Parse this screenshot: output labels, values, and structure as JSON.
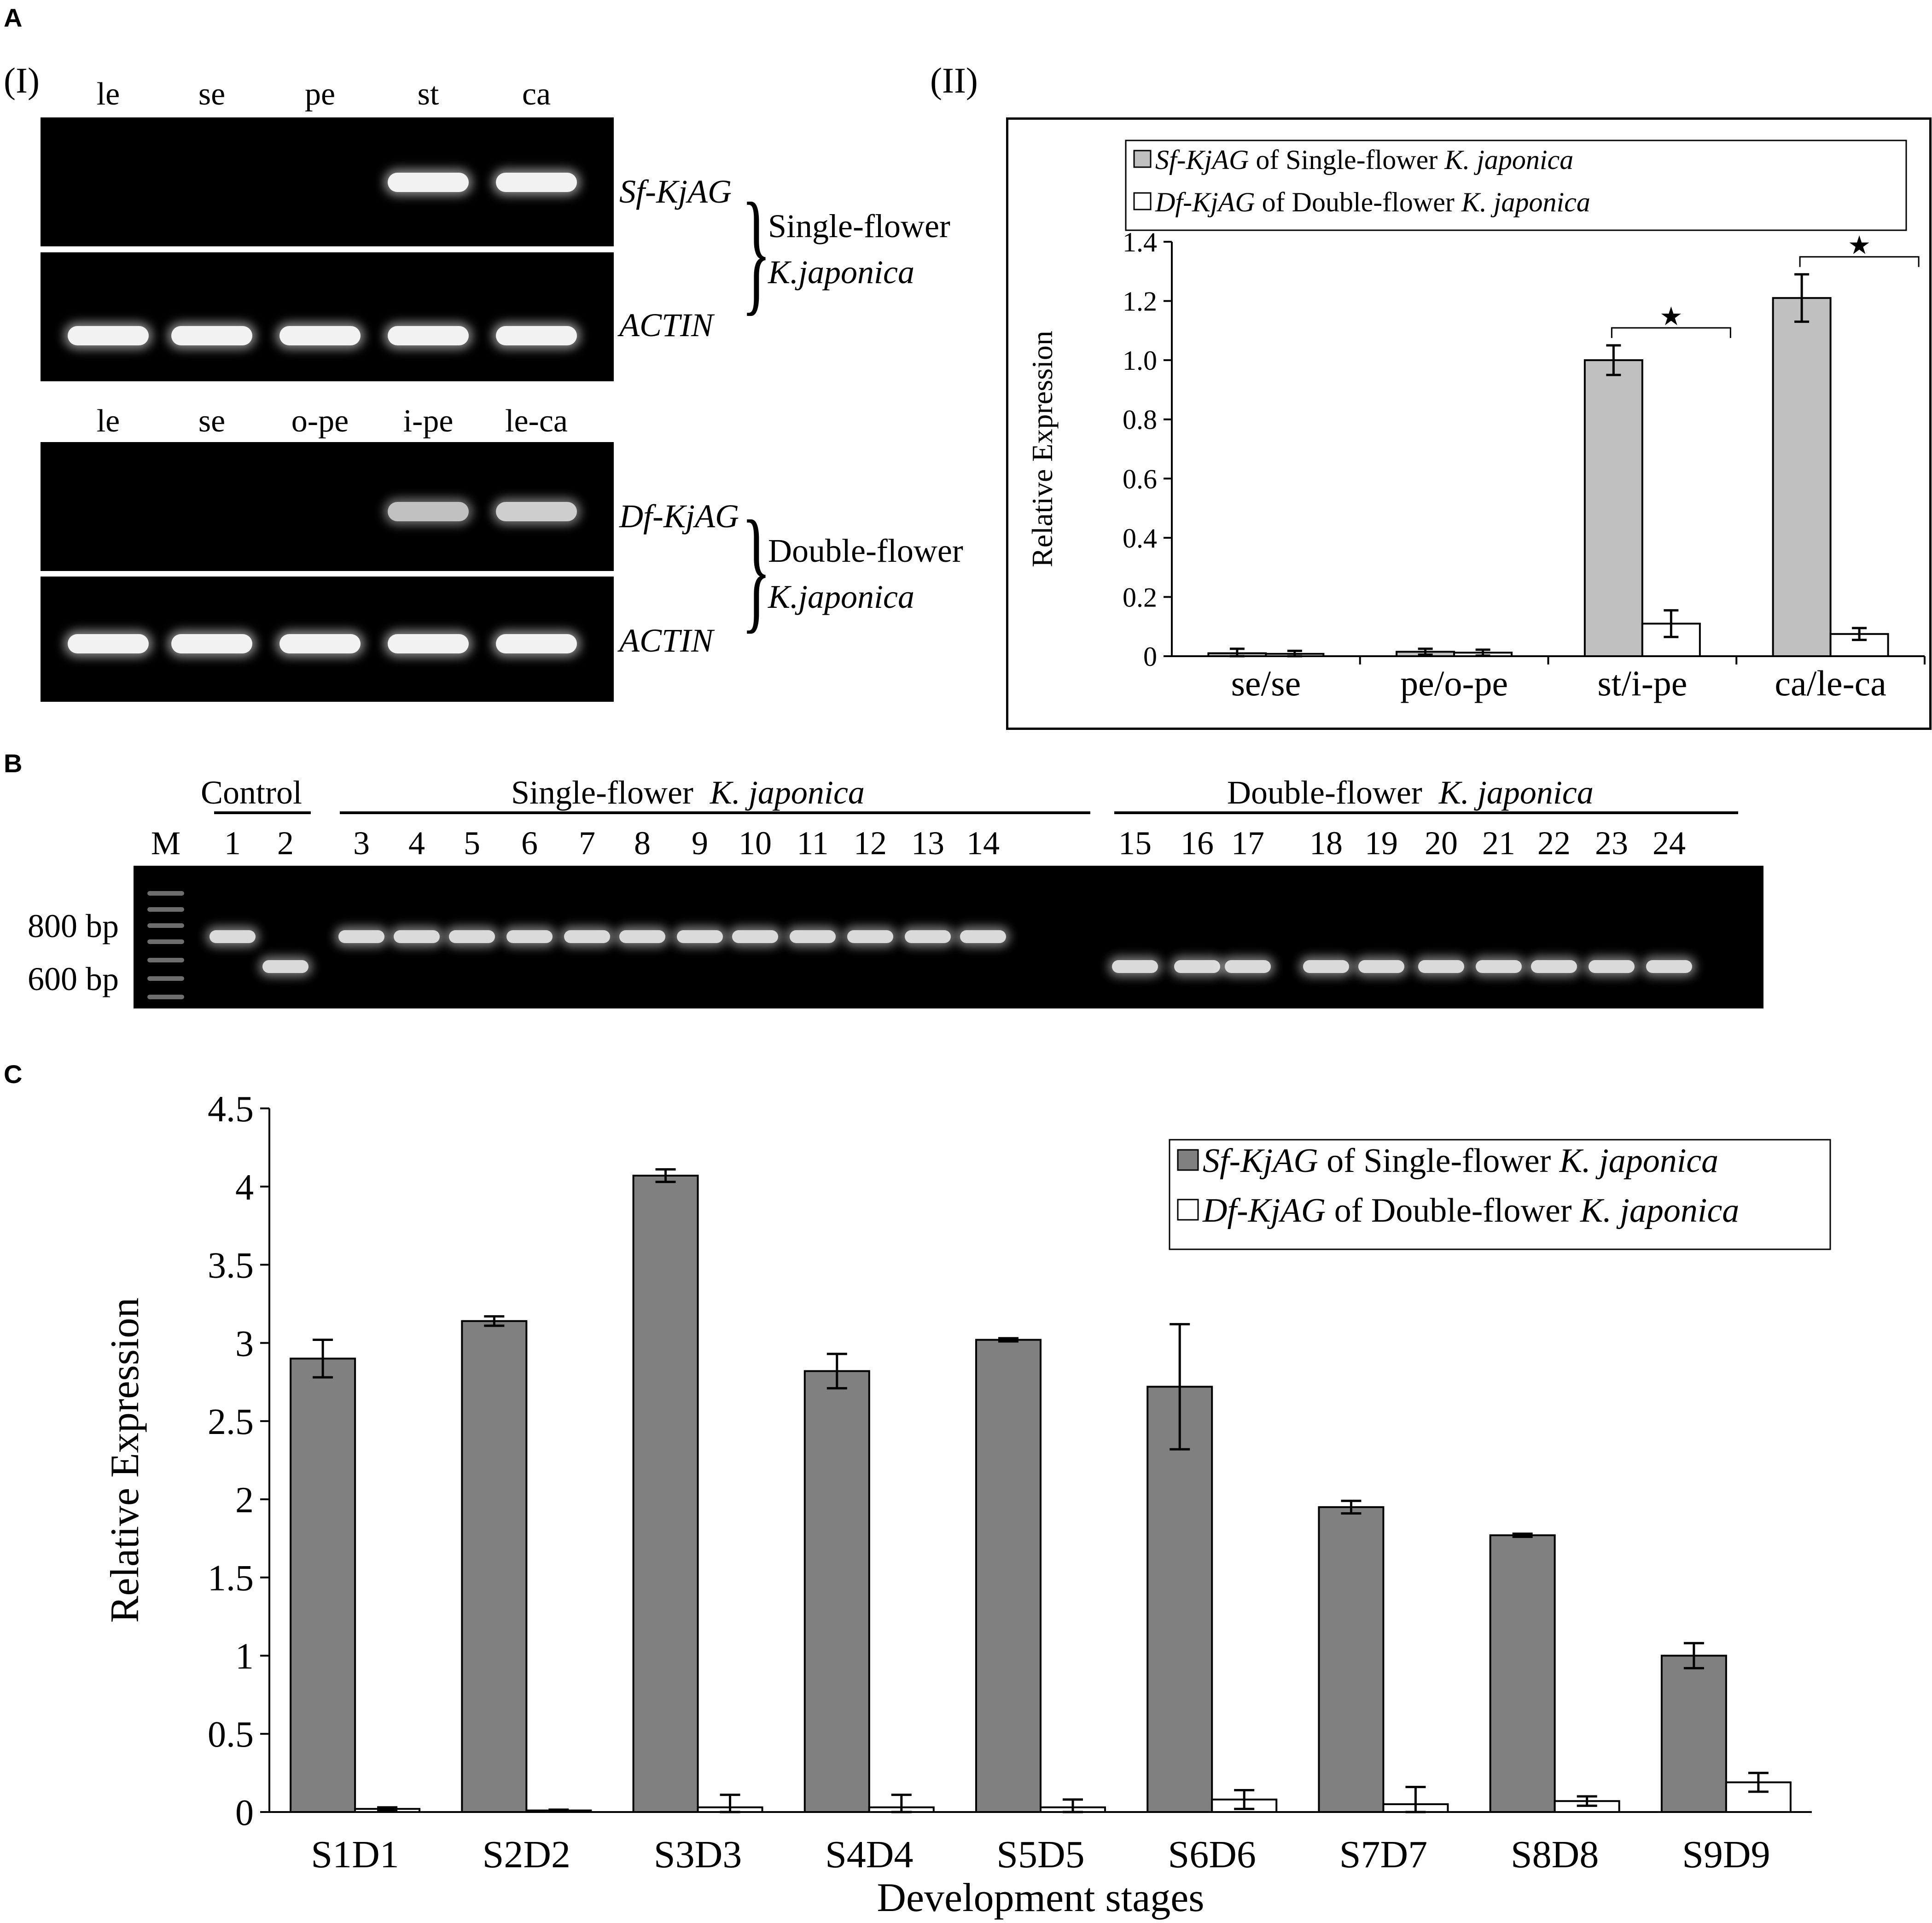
{
  "panel_a": {
    "letter": "A",
    "sub_i": "(I)",
    "sub_ii": "(II)",
    "single_lanes": [
      "le",
      "se",
      "pe",
      "st",
      "ca"
    ],
    "double_lanes": [
      "le",
      "se",
      "o-pe",
      "i-pe",
      "le-ca"
    ],
    "single_gene": "Sf-KjAG",
    "single_actin": "ACTIN",
    "single_label_1": "Single-flower",
    "single_label_2": "K.japonica",
    "double_gene": "Df-KjAG",
    "double_actin": "ACTIN",
    "double_label_1": "Double-flower",
    "double_label_2": "K.japonica",
    "single_gene_band_intensity": [
      0,
      0,
      0,
      1,
      1
    ],
    "double_gene_band_intensity": [
      0,
      0,
      0,
      0.8,
      0.85
    ]
  },
  "panel_b": {
    "letter": "B",
    "control_label": "Control",
    "single_group": {
      "prefix": "Single-flower",
      "species": "K. japonica"
    },
    "double_group": {
      "prefix": "Double-flower",
      "species": "K. japonica"
    },
    "lanes": [
      "M",
      "1",
      "2",
      "3",
      "4",
      "5",
      "6",
      "7",
      "8",
      "9",
      "10",
      "11",
      "12",
      "13",
      "14",
      "15",
      "16",
      "17",
      "18",
      "19",
      "20",
      "21",
      "22",
      "23",
      "24"
    ],
    "marker_800": "800 bp",
    "marker_600": "600 bp"
  },
  "panel_c_letter": "C",
  "chart_data": [
    {
      "type": "bar",
      "ylabel": "Relative Expression",
      "categories": [
        "se/se",
        "pe/o-pe",
        "st/i-pe",
        "ca/le-ca"
      ],
      "ylim": [
        0,
        1.4
      ],
      "yticks": [
        "0",
        "0.2",
        "0.4",
        "0.6",
        "0.8",
        "1.0",
        "1.2",
        "1.4"
      ],
      "series": [
        {
          "name": "of Single-flower",
          "gene": "Sf-KjAG",
          "species": "K. japonica",
          "color": "#c0c0c0",
          "values": [
            0.01,
            0.015,
            1.0,
            1.21
          ],
          "errors": [
            0.015,
            0.01,
            0.05,
            0.08
          ]
        },
        {
          "name": "of Double-flower",
          "gene": "Df-KjAG",
          "species": "K. japonica",
          "color": "#ffffff",
          "values": [
            0.008,
            0.012,
            0.11,
            0.075
          ],
          "errors": [
            0.01,
            0.01,
            0.045,
            0.02
          ]
        }
      ],
      "significance": [
        "",
        "",
        "★",
        "★"
      ],
      "legend_position": "top-right"
    },
    {
      "type": "bar",
      "xlabel": "Development stages",
      "ylabel": "Relative Expression",
      "categories": [
        "S1D1",
        "S2D2",
        "S3D3",
        "S4D4",
        "S5D5",
        "S6D6",
        "S7D7",
        "S8D8",
        "S9D9"
      ],
      "ylim": [
        0,
        4.5
      ],
      "yticks": [
        "0",
        "0.5",
        "1",
        "1.5",
        "2",
        "2.5",
        "3",
        "3.5",
        "4",
        "4.5"
      ],
      "series": [
        {
          "name": "of Single-flower",
          "gene": "Sf-KjAG",
          "species": "K. japonica",
          "color": "#808080",
          "values": [
            2.9,
            3.14,
            4.07,
            2.82,
            3.02,
            2.72,
            1.95,
            1.77,
            1.0
          ],
          "errors": [
            0.12,
            0.03,
            0.04,
            0.11,
            0.01,
            0.4,
            0.04,
            0.01,
            0.08
          ]
        },
        {
          "name": "of Double-flower",
          "gene": "Df-KjAG",
          "species": "K. japonica",
          "color": "#ffffff",
          "values": [
            0.02,
            0.01,
            0.03,
            0.03,
            0.03,
            0.08,
            0.05,
            0.07,
            0.19
          ],
          "errors": [
            0.01,
            0.005,
            0.08,
            0.08,
            0.05,
            0.06,
            0.11,
            0.03,
            0.06
          ]
        }
      ],
      "legend_position": "top-right"
    }
  ]
}
